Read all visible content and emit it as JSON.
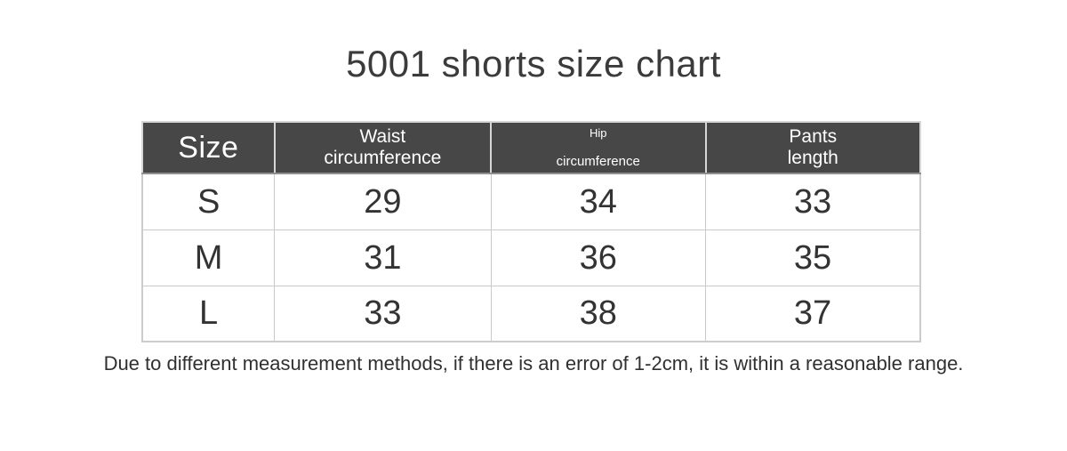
{
  "title": "5001 shorts size chart",
  "table": {
    "header": {
      "size": "Size",
      "waist": [
        "Waist",
        "circumference"
      ],
      "hip": [
        "Hip",
        "circumference"
      ],
      "pants": [
        "Pants",
        "length"
      ]
    },
    "rows": [
      {
        "size": "S",
        "waist": "29",
        "hip": "34",
        "pants": "33"
      },
      {
        "size": "M",
        "waist": "31",
        "hip": "36",
        "pants": "35"
      },
      {
        "size": "L",
        "waist": "33",
        "hip": "38",
        "pants": "37"
      }
    ]
  },
  "note": "Due to different measurement methods, if there is an error of 1-2cm, it is within a reasonable range.",
  "colors": {
    "header_background": "#474747",
    "header_text": "#ffffff",
    "cell_border": "#c9c9c9",
    "body_text": "#333333",
    "title_text": "#3b3b3b",
    "page_background": "#ffffff"
  },
  "chart_data": {
    "type": "table",
    "title": "5001 shorts size chart",
    "columns": [
      "Size",
      "Waist circumference",
      "Hip circumference",
      "Pants length"
    ],
    "rows": [
      [
        "S",
        29,
        34,
        33
      ],
      [
        "M",
        31,
        36,
        35
      ],
      [
        "L",
        33,
        38,
        37
      ]
    ],
    "note": "Due to different measurement methods, if there is an error of 1-2cm, it is within a reasonable range."
  }
}
